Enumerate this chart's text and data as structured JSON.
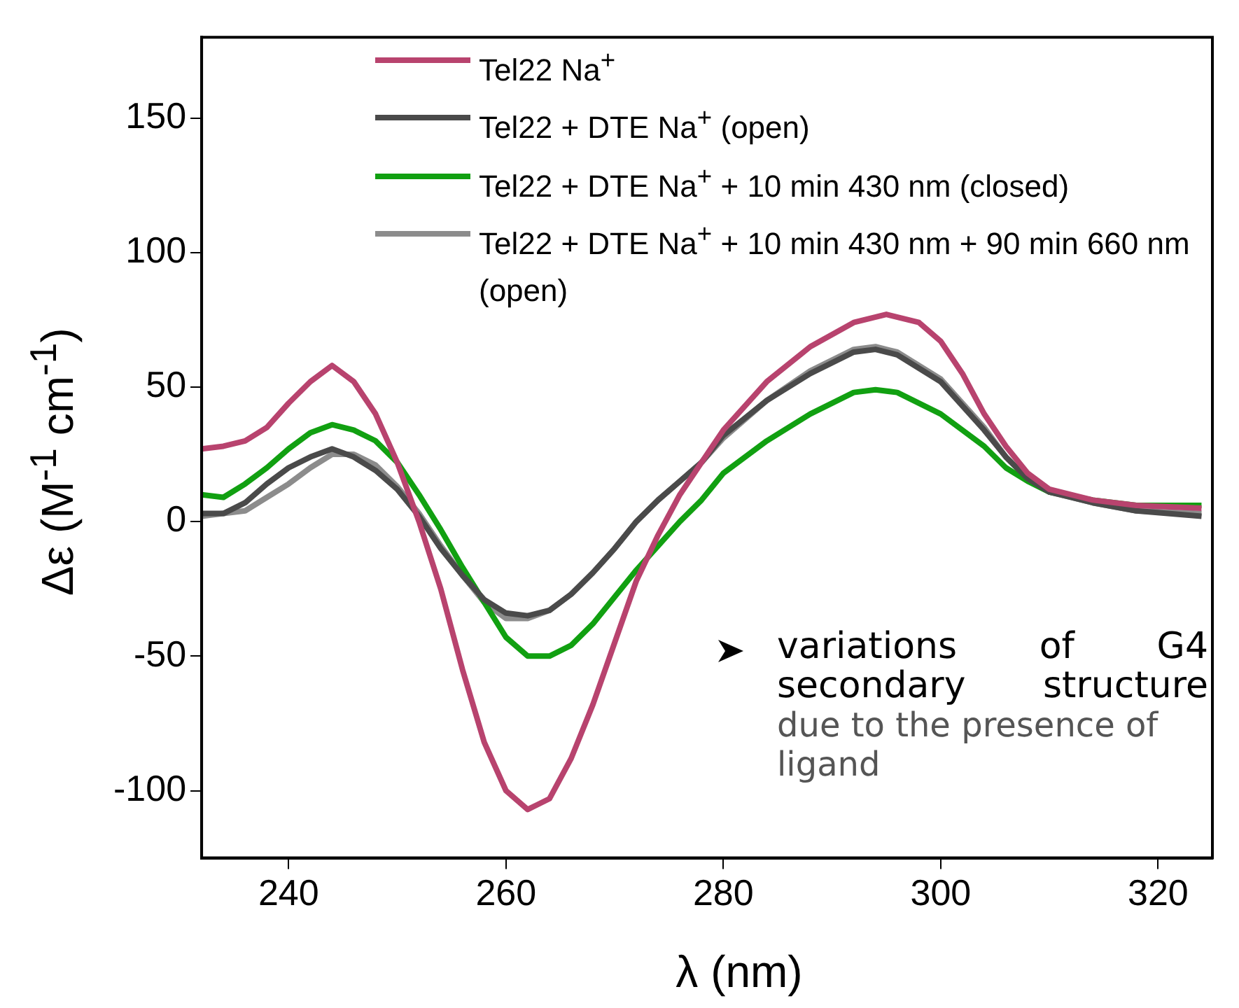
{
  "chart_data": {
    "type": "line",
    "xlabel": "λ (nm)",
    "ylabel": "Δε (M$^{-1}$ cm$^{-1}$)",
    "xlim": [
      232,
      325
    ],
    "xticks": [
      240,
      260,
      280,
      300,
      320
    ],
    "ylim": [
      -125,
      180
    ],
    "yticks": [
      -100,
      -50,
      0,
      50,
      100,
      150
    ],
    "grid": false,
    "legend": "top",
    "marker": "none",
    "line_style": "solid",
    "annotations": [
      "variations of G4 secondary structure",
      "due to the presence of ligand"
    ],
    "series": [
      {
        "name": "Tel22 Na$^{+}$",
        "color": "#b8436e",
        "x": [
          232,
          234,
          236,
          238,
          240,
          242,
          244,
          246,
          248,
          250,
          252,
          254,
          256,
          258,
          260,
          262,
          264,
          266,
          268,
          270,
          272,
          274,
          276,
          278,
          280,
          284,
          288,
          292,
          295,
          298,
          300,
          302,
          304,
          306,
          308,
          310,
          314,
          318,
          324
        ],
        "values": [
          27,
          28,
          30,
          35,
          44,
          52,
          58,
          52,
          40,
          22,
          0,
          -25,
          -55,
          -82,
          -100,
          -107,
          -103,
          -88,
          -68,
          -45,
          -22,
          -5,
          10,
          22,
          34,
          52,
          65,
          74,
          77,
          74,
          67,
          55,
          40,
          28,
          18,
          12,
          8,
          6,
          5
        ]
      },
      {
        "name": "Tel22 + DTE Na$^{+}$ (open)",
        "color": "#4a4a4a",
        "x": [
          232,
          234,
          236,
          238,
          240,
          242,
          244,
          246,
          248,
          250,
          252,
          254,
          256,
          258,
          260,
          262,
          264,
          266,
          268,
          270,
          272,
          274,
          276,
          278,
          280,
          284,
          288,
          292,
          294,
          296,
          300,
          304,
          306,
          308,
          310,
          314,
          318,
          324
        ],
        "values": [
          3,
          3,
          7,
          14,
          20,
          24,
          27,
          24,
          19,
          12,
          2,
          -10,
          -20,
          -29,
          -34,
          -35,
          -33,
          -27,
          -19,
          -10,
          0,
          8,
          15,
          22,
          32,
          45,
          55,
          63,
          64,
          62,
          52,
          34,
          24,
          16,
          11,
          7,
          4,
          2
        ]
      },
      {
        "name": "Tel22 + DTE Na$^{+}$ + 10 min 430 nm (closed)",
        "color": "#11a011",
        "x": [
          232,
          234,
          236,
          238,
          240,
          242,
          244,
          246,
          248,
          250,
          252,
          254,
          256,
          258,
          260,
          262,
          264,
          266,
          268,
          270,
          272,
          274,
          276,
          278,
          280,
          284,
          288,
          292,
          294,
          296,
          300,
          304,
          306,
          308,
          310,
          314,
          318,
          324
        ],
        "values": [
          10,
          9,
          14,
          20,
          27,
          33,
          36,
          34,
          30,
          22,
          10,
          -3,
          -17,
          -30,
          -43,
          -50,
          -50,
          -46,
          -38,
          -28,
          -18,
          -9,
          0,
          8,
          18,
          30,
          40,
          48,
          49,
          48,
          40,
          28,
          20,
          15,
          11,
          8,
          6,
          6
        ]
      },
      {
        "name": "Tel22 + DTE Na$^{+}$ + 10 min 430 nm + 90 min 660 nm (open)",
        "color": "#8c8c8c",
        "x": [
          232,
          234,
          236,
          238,
          240,
          242,
          244,
          246,
          248,
          250,
          252,
          254,
          256,
          258,
          260,
          262,
          264,
          266,
          268,
          270,
          272,
          274,
          276,
          278,
          280,
          284,
          288,
          292,
          294,
          296,
          300,
          304,
          306,
          308,
          310,
          314,
          318,
          324
        ],
        "values": [
          2,
          3,
          4,
          9,
          14,
          20,
          25,
          25,
          21,
          13,
          3,
          -9,
          -20,
          -30,
          -36,
          -36,
          -33,
          -27,
          -19,
          -10,
          0,
          8,
          15,
          22,
          31,
          45,
          56,
          64,
          65,
          63,
          53,
          35,
          24,
          16,
          11,
          7,
          4,
          3
        ]
      }
    ]
  }
}
